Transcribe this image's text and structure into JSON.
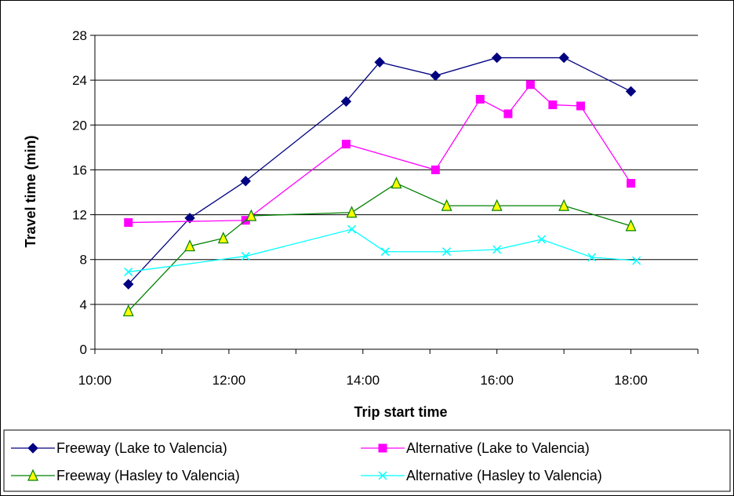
{
  "chart_data": {
    "type": "line",
    "title": "",
    "xlabel": "Trip start time",
    "ylabel": "Travel time (min)",
    "x_unit": "time of day",
    "xlim": [
      "10:00",
      "19:00"
    ],
    "ylim": [
      0,
      28
    ],
    "x_ticks": [
      "10:00",
      "12:00",
      "14:00",
      "16:00",
      "18:00"
    ],
    "y_ticks": [
      "0",
      "4",
      "8",
      "12",
      "16",
      "20",
      "24",
      "28"
    ],
    "grid": "horizontal",
    "legend_position": "bottom",
    "series": [
      {
        "name": "Freeway (Lake  to Valencia)",
        "color": "#000080",
        "marker": "diamond",
        "x": [
          "10:30",
          "11:25",
          "12:15",
          "13:45",
          "14:15",
          "15:05",
          "16:00",
          "17:00",
          "18:00"
        ],
        "y": [
          5.8,
          11.7,
          15.0,
          22.1,
          25.6,
          24.4,
          26.0,
          26.0,
          23.0
        ]
      },
      {
        "name": "Alternative (Lake  to Valencia)",
        "color": "#FF00FF",
        "marker": "square",
        "x": [
          "10:30",
          "12:15",
          "13:45",
          "15:05",
          "15:45",
          "16:10",
          "16:30",
          "16:50",
          "17:15",
          "18:00"
        ],
        "y": [
          11.3,
          11.5,
          18.3,
          16.0,
          22.3,
          21.0,
          23.6,
          21.8,
          21.7,
          14.8
        ]
      },
      {
        "name": "Freeway  (Hasley  to Valencia)",
        "color": "#008000",
        "marker": "triangle",
        "x": [
          "10:30",
          "11:25",
          "11:55",
          "12:20",
          "13:50",
          "14:30",
          "15:15",
          "16:00",
          "17:00",
          "18:00"
        ],
        "y": [
          3.4,
          9.2,
          9.9,
          11.9,
          12.2,
          14.8,
          12.8,
          12.8,
          12.8,
          11.0
        ]
      },
      {
        "name": "Alternative (Hasley  to Valencia)",
        "color": "#00FFFF",
        "marker": "x",
        "x": [
          "10:30",
          "12:15",
          "13:50",
          "14:20",
          "15:15",
          "16:00",
          "16:40",
          "17:25",
          "18:05"
        ],
        "y": [
          6.9,
          8.3,
          10.7,
          8.7,
          8.7,
          8.9,
          9.8,
          8.2,
          7.9
        ]
      }
    ]
  }
}
